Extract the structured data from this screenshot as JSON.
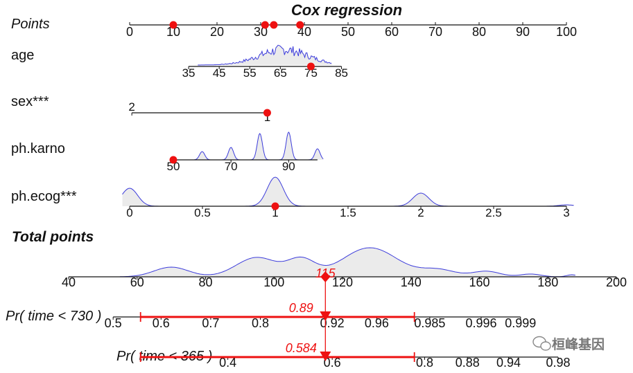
{
  "chart_data": {
    "type": "nomogram",
    "title": "Cox regression",
    "points_axis": {
      "label": "Points",
      "range": [
        0,
        100
      ],
      "ticks": [
        0,
        10,
        20,
        30,
        40,
        50,
        60,
        70,
        80,
        90,
        100
      ],
      "markers": [
        10,
        31,
        33,
        39
      ]
    },
    "variables": [
      {
        "name": "age",
        "ticks": [
          35,
          45,
          55,
          65,
          75,
          85
        ],
        "range": [
          35,
          85
        ],
        "points_range": [
          13.5,
          48.5
        ],
        "marker": 75,
        "density": "histogram"
      },
      {
        "name": "sex***",
        "ticks": [
          2,
          1
        ],
        "range": [
          2,
          1
        ],
        "points_range": [
          0.5,
          31.5
        ],
        "marker": 1
      },
      {
        "name": "ph.karno",
        "ticks": [
          50,
          70,
          90
        ],
        "range": [
          50,
          100
        ],
        "points_range": [
          10,
          43
        ],
        "marker": 50,
        "density_peaks": [
          60,
          70,
          80,
          90,
          100
        ]
      },
      {
        "name": "ph.ecog***",
        "ticks": [
          0,
          0.5,
          1,
          1.5,
          2,
          2.5,
          3
        ],
        "range": [
          0,
          3
        ],
        "points_range": [
          0,
          100
        ],
        "marker": 1,
        "density_peaks": [
          0,
          1,
          2,
          3
        ]
      }
    ],
    "total_points": {
      "label": "Total points",
      "ticks": [
        40,
        60,
        80,
        100,
        120,
        140,
        160,
        180,
        200
      ],
      "range": [
        40,
        200
      ],
      "marker": 115,
      "marker_label": "115"
    },
    "probability_axes": [
      {
        "label": "Pr( time < 730 )",
        "ticks": [
          "0.5",
          "0.6",
          "0.7",
          "0.8",
          "0.92",
          "0.96",
          "0.985",
          "0.996",
          "0.999"
        ],
        "tick_total_points": [
          53,
          67,
          81.5,
          96,
          117,
          130,
          145.5,
          160.5,
          172
        ],
        "predicted": 0.89,
        "predicted_label": "0.89",
        "ci_total_points": [
          61,
          141
        ]
      },
      {
        "label": "Pr( time < 365 )",
        "ticks": [
          "0.4",
          "0.6",
          "0.8",
          "0.88",
          "0.94",
          "0.98"
        ],
        "tick_total_points": [
          86.5,
          117,
          144,
          156.5,
          168.5,
          183
        ],
        "predicted": 0.584,
        "predicted_label": "0.584",
        "ci_total_points": [
          61,
          141
        ]
      }
    ],
    "colors": {
      "marker": "#ee1111",
      "density_line": "#3b3bdb",
      "density_fill": "#ebebeb",
      "axis": "#111111"
    }
  },
  "watermark": {
    "text": "桓峰基因",
    "icon": "wechat-icon"
  }
}
